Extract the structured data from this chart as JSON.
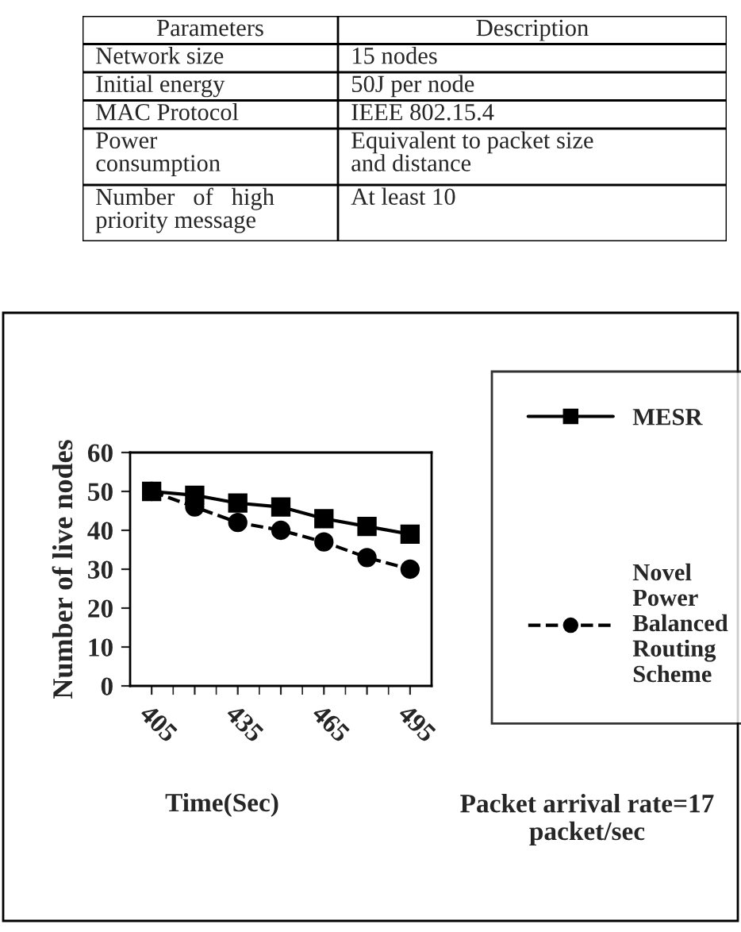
{
  "chart_data": [
    {
      "type": "other",
      "annotations": [
        "Parameters",
        "Description",
        "Network size",
        "15 nodes",
        "Initial energy",
        "50J per node",
        "MAC Protocol",
        "IEEE 802.15.4",
        "Power\nconsumption",
        "Equivalent to packet size\nand distance",
        "Number   of   high\npriority message",
        "At least 10"
      ]
    },
    {
      "type": "line",
      "xlabel": "Time(Sec)",
      "ylabel": "Number of live nodes",
      "categories": [
        "405",
        null,
        "435",
        null,
        "465",
        null,
        "495"
      ],
      "series": [
        {
          "name": "MESR",
          "color": "#000000",
          "marker": "square",
          "line_style": "solid",
          "values": [
            50,
            49,
            47,
            46,
            43,
            41,
            39
          ]
        },
        {
          "name": "Novel Power Balanced Routing Scheme",
          "color": "#000000",
          "marker": "circle",
          "line_style": "dashed",
          "values": [
            50,
            46,
            42,
            40,
            37,
            33,
            30
          ]
        }
      ],
      "ylim": [
        0,
        60
      ],
      "yticks": [
        0,
        10,
        20,
        30,
        40,
        50,
        60
      ],
      "grid": false,
      "legend": "right",
      "annotations": [
        "Packet arrival rate=17\npacket/sec"
      ]
    }
  ]
}
